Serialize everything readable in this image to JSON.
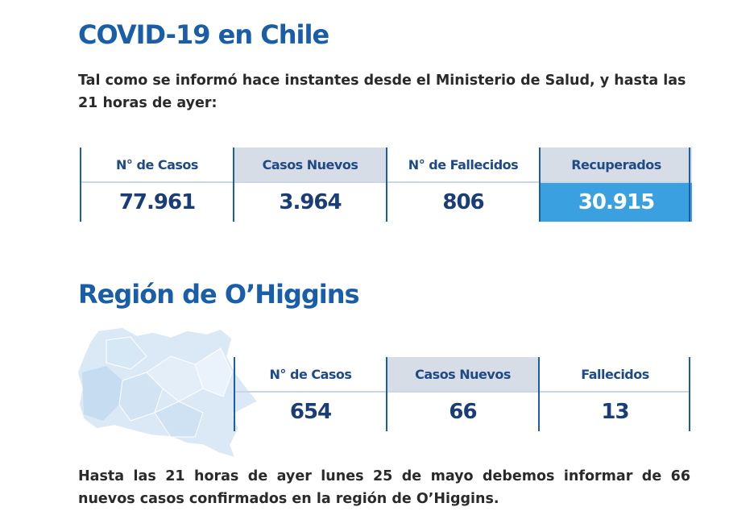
{
  "national": {
    "title": "COVID-19 en Chile",
    "intro": "Tal como se informó hace instantes desde el Ministerio de Salud, y hasta las 21 horas de ayer:",
    "stats": [
      {
        "label": "N° de Casos",
        "value": "77.961"
      },
      {
        "label": "Casos Nuevos",
        "value": "3.964"
      },
      {
        "label": "N° de Fallecidos",
        "value": "806"
      },
      {
        "label": "Recuperados",
        "value": "30.915"
      }
    ]
  },
  "region": {
    "title": "Región de O’Higgins",
    "stats": [
      {
        "label": "N° de Casos",
        "value": "654"
      },
      {
        "label": "Casos Nuevos",
        "value": "66"
      },
      {
        "label": "Fallecidos",
        "value": "13"
      }
    ],
    "note_line1": "Hasta las 21 horas de ayer lunes 25 de mayo debemos informar de 66",
    "note_line2": "nuevos casos confirmados en la región de O’Higgins."
  },
  "colors": {
    "title_blue": "#1a5ea8",
    "highlight": "#3aa0e0",
    "header_gray": "#d7dde6",
    "map_fill": "#dbe9f6"
  }
}
